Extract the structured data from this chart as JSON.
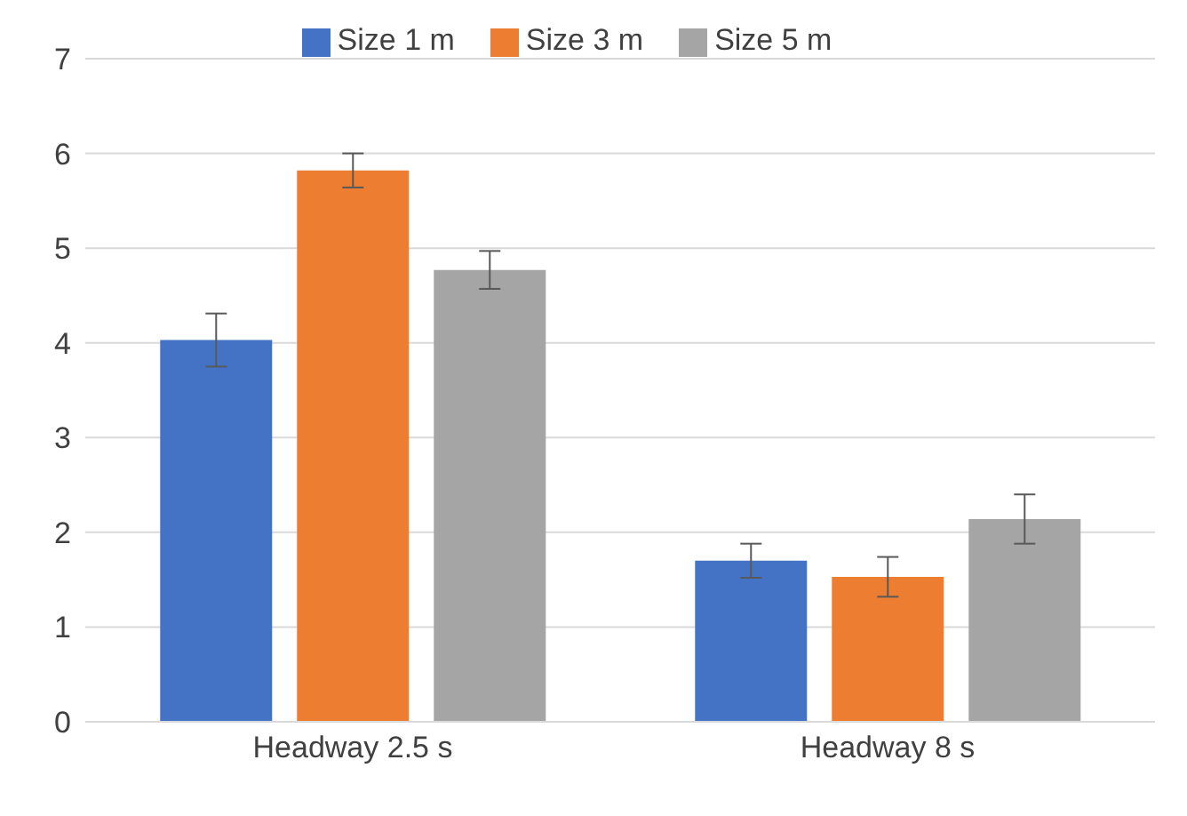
{
  "chart_data": {
    "type": "bar",
    "categories": [
      "Headway 2.5 s",
      "Headway 8 s"
    ],
    "series": [
      {
        "name": "Size 1 m",
        "color": "#4472c4",
        "values": [
          4.03,
          1.7
        ],
        "errors": [
          0.28,
          0.18
        ]
      },
      {
        "name": "Size 3 m",
        "color": "#ed7d31",
        "values": [
          5.82,
          1.53
        ],
        "errors": [
          0.18,
          0.21
        ]
      },
      {
        "name": "Size 5 m",
        "color": "#a5a5a5",
        "values": [
          4.77,
          2.14
        ],
        "errors": [
          0.2,
          0.26
        ]
      }
    ],
    "ylim": [
      0,
      7
    ],
    "yticks": [
      0,
      1,
      2,
      3,
      4,
      5,
      6,
      7
    ],
    "grid": "y",
    "legend": "top"
  }
}
